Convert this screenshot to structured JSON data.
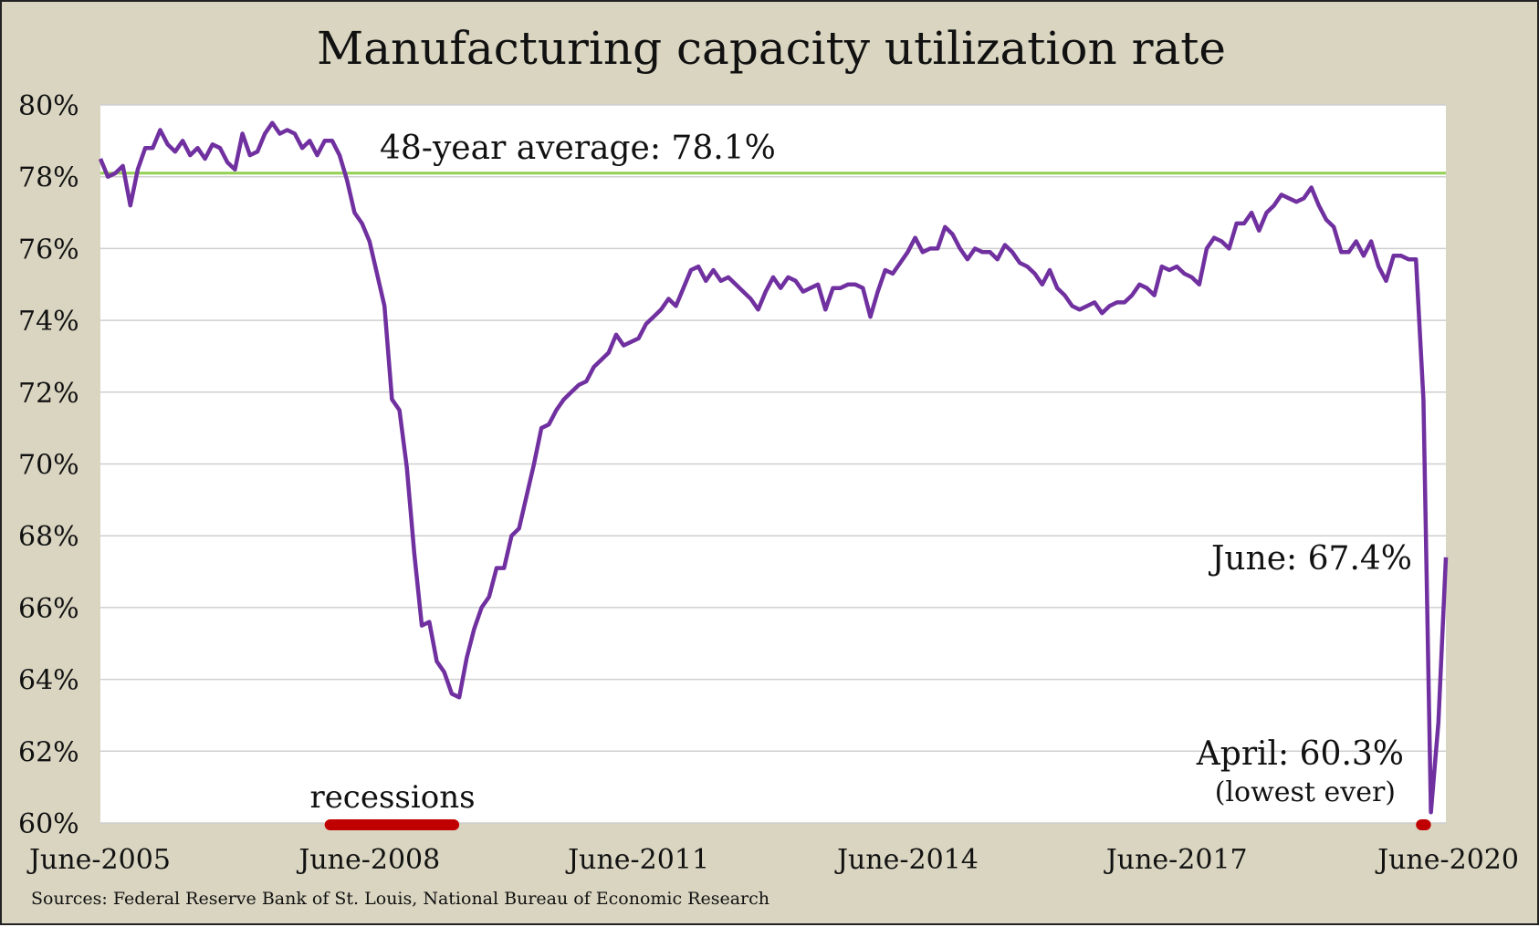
{
  "chart_data": {
    "type": "line",
    "title": "Manufacturing capacity utilization rate",
    "xlabel": "",
    "ylabel": "",
    "ylim": [
      60,
      80
    ],
    "yticks": [
      80,
      78,
      76,
      74,
      72,
      70,
      68,
      66,
      64,
      62,
      60
    ],
    "ytick_labels": [
      "80%",
      "78%",
      "76%",
      "74%",
      "72%",
      "70%",
      "68%",
      "66%",
      "64%",
      "62%",
      "60%"
    ],
    "x_start": "June-2005",
    "x_end": "June-2020",
    "xtick_labels": [
      "June-2005",
      "June-2008",
      "June-2011",
      "June-2014",
      "June-2017",
      "June-2020"
    ],
    "grid": true,
    "line_color": "#7030a0",
    "average": {
      "value": 78.1,
      "label": "48-year average: 78.1%",
      "color": "#92d050"
    },
    "recessions": {
      "label": "recessions",
      "color": "#c00000",
      "periods": [
        [
          "December-2007",
          "June-2009"
        ],
        [
          "February-2020",
          "April-2020"
        ]
      ]
    },
    "annotations": [
      {
        "text": "June: 67.4%"
      },
      {
        "text": "April: 60.3%"
      },
      {
        "text": "(lowest ever)"
      }
    ],
    "source": "Sources: Federal Reserve Bank of St. Louis, National Bureau of Economic Research",
    "series": [
      {
        "values": [
          78.5,
          78.0,
          78.1,
          78.3,
          77.2,
          78.2,
          78.8,
          78.8,
          79.3,
          78.9,
          78.7,
          79.0,
          78.6,
          78.8,
          78.5,
          78.9,
          78.8,
          78.4,
          78.2,
          79.2,
          78.6,
          78.7,
          79.2,
          79.5,
          79.2,
          79.3,
          79.2,
          78.8,
          79.0,
          78.6,
          79.0,
          79.0,
          78.6,
          77.9,
          77.0,
          76.7,
          76.2,
          75.3,
          74.4,
          71.8,
          71.5,
          69.9,
          67.5,
          65.5,
          65.6,
          64.5,
          64.2,
          63.6,
          63.5,
          64.6,
          65.4,
          66.0,
          66.3,
          67.1,
          67.1,
          68.0,
          68.2,
          69.1,
          70.0,
          71.0,
          71.1,
          71.5,
          71.8,
          72.0,
          72.2,
          72.3,
          72.7,
          72.9,
          73.1,
          73.6,
          73.3,
          73.4,
          73.5,
          73.9,
          74.1,
          74.3,
          74.6,
          74.4,
          74.9,
          75.4,
          75.5,
          75.1,
          75.4,
          75.1,
          75.2,
          75.0,
          74.8,
          74.6,
          74.3,
          74.8,
          75.2,
          74.9,
          75.2,
          75.1,
          74.8,
          74.9,
          75.0,
          74.3,
          74.9,
          74.9,
          75.0,
          75.0,
          74.9,
          74.1,
          74.8,
          75.4,
          75.3,
          75.6,
          75.9,
          76.3,
          75.9,
          76.0,
          76.0,
          76.6,
          76.4,
          76.0,
          75.7,
          76.0,
          75.9,
          75.9,
          75.7,
          76.1,
          75.9,
          75.6,
          75.5,
          75.3,
          75.0,
          75.4,
          74.9,
          74.7,
          74.4,
          74.3,
          74.4,
          74.5,
          74.2,
          74.4,
          74.5,
          74.5,
          74.7,
          75.0,
          74.9,
          74.7,
          75.5,
          75.4,
          75.5,
          75.3,
          75.2,
          75.0,
          76.0,
          76.3,
          76.2,
          76.0,
          76.7,
          76.7,
          77.0,
          76.5,
          77.0,
          77.2,
          77.5,
          77.4,
          77.3,
          77.4,
          77.7,
          77.2,
          76.8,
          76.6,
          75.9,
          75.9,
          76.2,
          75.8,
          76.2,
          75.5,
          75.1,
          75.8,
          75.8,
          75.7,
          75.7,
          71.8,
          60.3,
          62.8,
          67.4
        ]
      }
    ]
  }
}
